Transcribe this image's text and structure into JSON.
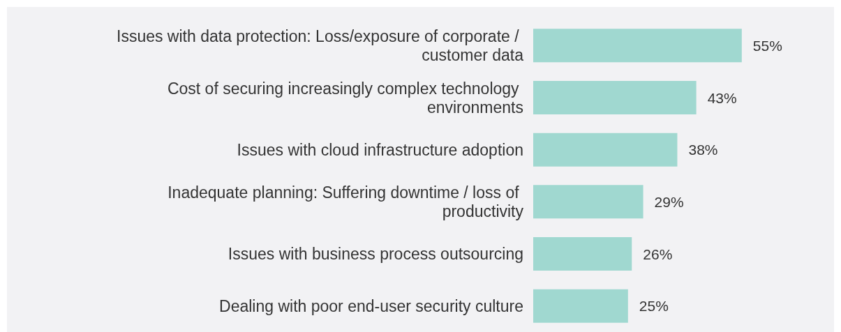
{
  "chart_data": {
    "type": "bar",
    "orientation": "horizontal",
    "categories": [
      "Issues with data protection: Loss/exposure of corporate / customer data",
      "Cost of securing increasingly complex technology environments",
      "Issues with cloud infrastructure adoption",
      "Inadequate planning: Suffering downtime / loss of productivity",
      "Issues with business process outsourcing",
      "Dealing with poor end-user security culture"
    ],
    "values": [
      55,
      43,
      38,
      29,
      26,
      25
    ],
    "value_labels": [
      "55%",
      "43%",
      "38%",
      "29%",
      "26%",
      "25%"
    ],
    "color": "#a0d8d0"
  }
}
